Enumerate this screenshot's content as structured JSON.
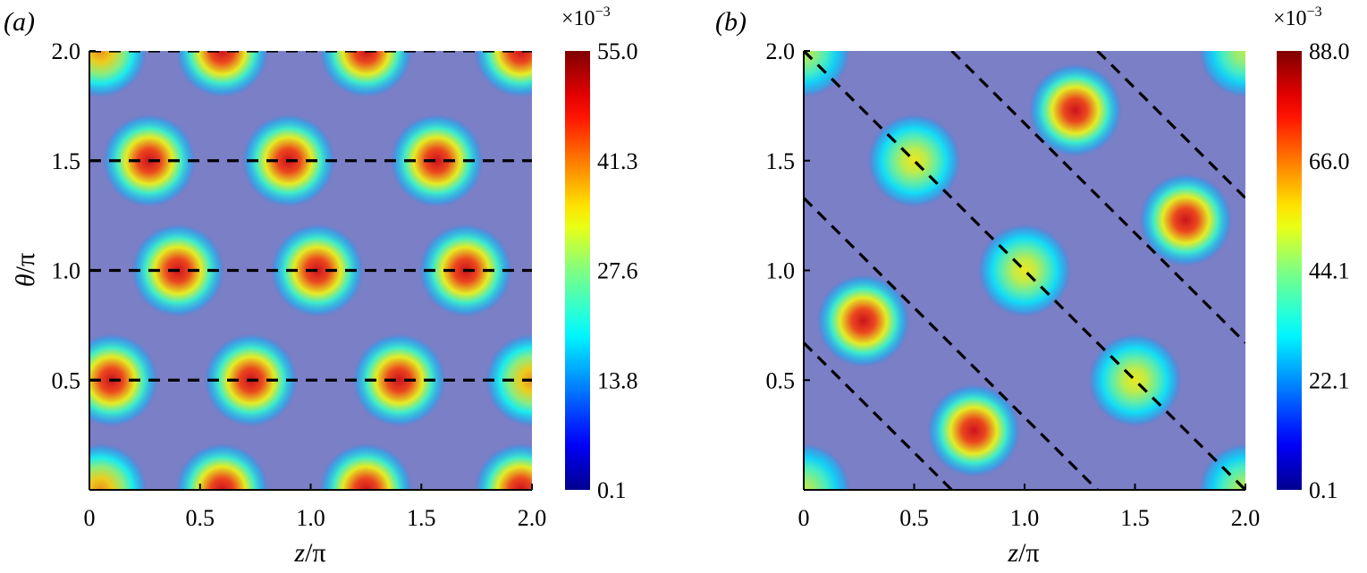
{
  "chart_data": [
    {
      "type": "heatmap",
      "panel_label": "(a)",
      "xlabel_var": "z",
      "xlabel_unit": "/π",
      "ylabel_var": "θ",
      "ylabel_unit": "/π",
      "xlim": [
        0,
        2.0
      ],
      "ylim": [
        0,
        2.0
      ],
      "x_tick_values": [
        0,
        0.5,
        1.0,
        1.5,
        2.0
      ],
      "x_tick_labels": [
        "0",
        "0.5",
        "1.0",
        "1.5",
        "2.0"
      ],
      "y_tick_values": [
        0.5,
        1.0,
        1.5,
        2.0
      ],
      "y_tick_labels": [
        "0.5",
        "1.0",
        "1.5",
        "2.0"
      ],
      "colorbar": {
        "min": 0.1,
        "max": 55.0,
        "tick_labels": [
          "0.1",
          "13.8",
          "27.6",
          "41.3",
          "55.0"
        ],
        "multiplier_base": "×10",
        "multiplier_exp": "−3"
      },
      "background_value": 14,
      "spots": [
        {
          "z": 0.05,
          "theta": 0.0,
          "value": 40
        },
        {
          "z": 0.6,
          "theta": 0.0,
          "value": 50
        },
        {
          "z": 1.25,
          "theta": 0.0,
          "value": 50
        },
        {
          "z": 1.95,
          "theta": 0.0,
          "value": 50
        },
        {
          "z": 0.6,
          "theta": 2.0,
          "value": 50
        },
        {
          "z": 1.25,
          "theta": 2.0,
          "value": 50
        },
        {
          "z": 1.95,
          "theta": 2.0,
          "value": 50
        },
        {
          "z": 0.05,
          "theta": 2.0,
          "value": 40
        },
        {
          "z": 0.1,
          "theta": 0.5,
          "value": 50
        },
        {
          "z": 0.73,
          "theta": 0.5,
          "value": 50
        },
        {
          "z": 1.4,
          "theta": 0.5,
          "value": 50
        },
        {
          "z": 2.0,
          "theta": 0.5,
          "value": 40
        },
        {
          "z": 0.4,
          "theta": 1.0,
          "value": 50
        },
        {
          "z": 1.03,
          "theta": 1.0,
          "value": 50
        },
        {
          "z": 1.7,
          "theta": 1.0,
          "value": 50
        },
        {
          "z": 0.27,
          "theta": 1.5,
          "value": 50
        },
        {
          "z": 0.9,
          "theta": 1.5,
          "value": 50
        },
        {
          "z": 1.57,
          "theta": 1.5,
          "value": 50
        }
      ],
      "dashed_lines": [
        {
          "x1": 0,
          "y1": 0.5,
          "x2": 2.0,
          "y2": 0.5
        },
        {
          "x1": 0,
          "y1": 1.0,
          "x2": 2.0,
          "y2": 1.0
        },
        {
          "x1": 0,
          "y1": 1.5,
          "x2": 2.0,
          "y2": 1.5
        },
        {
          "x1": 0,
          "y1": 2.0,
          "x2": 2.0,
          "y2": 2.0
        }
      ]
    },
    {
      "type": "heatmap",
      "panel_label": "(b)",
      "xlabel_var": "z",
      "xlabel_unit": "/π",
      "ylabel_var": "",
      "ylabel_unit": "",
      "xlim": [
        0,
        2.0
      ],
      "ylim": [
        0,
        2.0
      ],
      "x_tick_values": [
        0,
        0.5,
        1.0,
        1.5,
        2.0
      ],
      "x_tick_labels": [
        "0",
        "0.5",
        "1.0",
        "1.5",
        "2.0"
      ],
      "y_tick_values": [
        0.5,
        1.0,
        1.5,
        2.0
      ],
      "y_tick_labels": [
        "0.5",
        "1.0",
        "1.5",
        "2.0"
      ],
      "colorbar": {
        "min": 0.1,
        "max": 88.0,
        "tick_labels": [
          "0.1",
          "22.1",
          "44.1",
          "66.0",
          "88.0"
        ],
        "multiplier_base": "×10",
        "multiplier_exp": "−3"
      },
      "background_value": 22,
      "spots": [
        {
          "z": 0.0,
          "theta": 2.0,
          "value": 50
        },
        {
          "z": 2.0,
          "theta": 2.0,
          "value": 50
        },
        {
          "z": 0.0,
          "theta": 0.0,
          "value": 50
        },
        {
          "z": 2.0,
          "theta": 0.0,
          "value": 50
        },
        {
          "z": 0.5,
          "theta": 1.5,
          "value": 55
        },
        {
          "z": 1.0,
          "theta": 1.0,
          "value": 55
        },
        {
          "z": 1.5,
          "theta": 0.5,
          "value": 55
        },
        {
          "z": 1.23,
          "theta": 1.73,
          "value": 80
        },
        {
          "z": 1.73,
          "theta": 1.23,
          "value": 80
        },
        {
          "z": 0.27,
          "theta": 0.77,
          "value": 80
        },
        {
          "z": 0.77,
          "theta": 0.27,
          "value": 80
        }
      ],
      "dashed_lines": [
        {
          "x1": 0,
          "y1": 2.0,
          "x2": 2.0,
          "y2": 0.0
        },
        {
          "x1": 0,
          "y1": 1.33,
          "x2": 1.33,
          "y2": 0.0
        },
        {
          "x1": 0,
          "y1": 0.67,
          "x2": 0.67,
          "y2": 0.0
        },
        {
          "x1": 0.67,
          "y1": 2.0,
          "x2": 2.0,
          "y2": 0.67
        },
        {
          "x1": 1.33,
          "y1": 2.0,
          "x2": 2.0,
          "y2": 1.33
        }
      ]
    }
  ]
}
